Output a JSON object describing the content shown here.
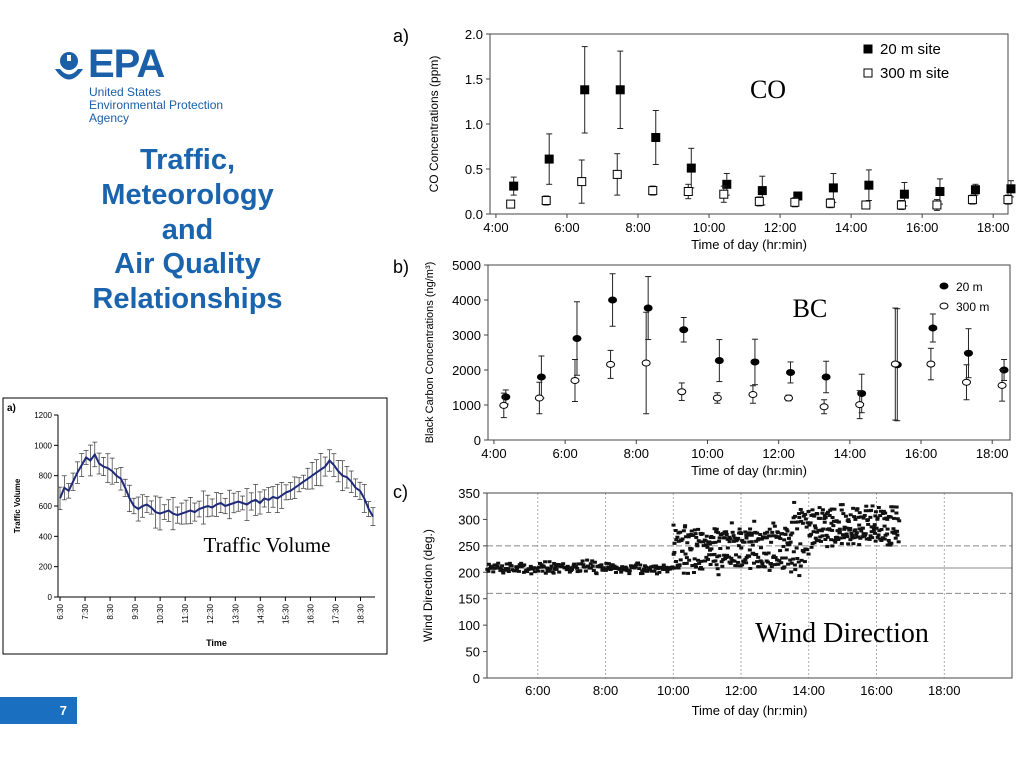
{
  "branding": {
    "logo_text": "EPA",
    "org_line1": "United States",
    "org_line2": "Environmental Protection",
    "org_line3": "Agency",
    "brand_color": "#1a5fa8"
  },
  "slide": {
    "title_lines": [
      "Traffic,",
      "Meteorology",
      "and",
      "Air Quality",
      "Relationships"
    ],
    "page_number": "7",
    "title_color": "#1a64ae",
    "badge_color": "#1a6fc0"
  },
  "chart_data": [
    {
      "id": "traffic",
      "type": "line",
      "panel_label": "a)",
      "annotation": "Traffic Volume",
      "xlabel": "Time",
      "ylabel": "Traffic Volume",
      "ylim": [
        0,
        1200
      ],
      "yticks": [
        "0",
        "200",
        "400",
        "600",
        "800",
        "1000",
        "1200"
      ],
      "xticks": [
        "6:30",
        "7:30",
        "8:30",
        "9:30",
        "10:30",
        "11:30",
        "12:30",
        "13:30",
        "14:30",
        "15:30",
        "16:30",
        "17:30",
        "18:30"
      ],
      "series": [
        {
          "values": [
            650,
            720,
            700,
            760,
            820,
            870,
            920,
            900,
            940,
            880,
            860,
            850,
            830,
            800,
            780,
            720,
            650,
            600,
            580,
            600,
            610,
            590,
            560,
            550,
            560,
            570,
            550,
            540,
            550,
            560,
            570,
            560,
            580,
            590,
            600,
            590,
            610,
            620,
            600,
            610,
            620,
            630,
            620,
            610,
            630,
            640,
            620,
            650,
            640,
            660,
            650,
            670,
            690,
            700,
            720,
            740,
            760,
            780,
            800,
            820,
            840,
            860,
            900,
            870,
            830,
            800,
            790,
            760,
            720,
            700,
            650,
            580,
            530
          ]
        }
      ]
    },
    {
      "id": "co",
      "type": "scatter",
      "panel_label": "a)",
      "annotation": "CO",
      "xlabel": "Time of day (hr:min)",
      "ylabel": "CO Concentrations (ppm)",
      "ylim": [
        0,
        2
      ],
      "yticks": [
        "0.0",
        "0.5",
        "1.0",
        "1.5",
        "2.0"
      ],
      "xticks": [
        "4:00",
        "6:00",
        "8:00",
        "10:00",
        "12:00",
        "14:00",
        "16:00",
        "18:00"
      ],
      "x": [
        "4:30",
        "5:30",
        "6:30",
        "7:30",
        "8:30",
        "9:30",
        "10:30",
        "11:30",
        "12:30",
        "13:30",
        "14:30",
        "15:30",
        "16:30",
        "17:30",
        "18:30"
      ],
      "series": [
        {
          "name": "20 m site",
          "values": [
            0.31,
            0.61,
            1.38,
            1.38,
            0.85,
            0.51,
            0.33,
            0.26,
            0.2,
            0.29,
            0.32,
            0.22,
            0.25,
            0.27,
            0.28
          ],
          "err": [
            0.1,
            0.28,
            0.48,
            0.43,
            0.3,
            0.22,
            0.12,
            0.16,
            0.04,
            0.16,
            0.17,
            0.13,
            0.14,
            0.06,
            0.09
          ]
        },
        {
          "name": "300 m site",
          "values": [
            0.11,
            0.15,
            0.36,
            0.44,
            0.26,
            0.25,
            0.22,
            0.14,
            0.13,
            0.12,
            0.1,
            0.1,
            0.1,
            0.16,
            0.16
          ],
          "err": [
            0.04,
            0.05,
            0.24,
            0.23,
            0.05,
            0.08,
            0.09,
            0.05,
            0.05,
            0.05,
            0.04,
            0.05,
            0.06,
            0.05,
            0.05
          ]
        }
      ]
    },
    {
      "id": "bc",
      "type": "scatter",
      "panel_label": "b)",
      "annotation": "BC",
      "xlabel": "Time of day (hr:min)",
      "ylabel": "Black Carbon Concentrations (ng/m³)",
      "ylim": [
        0,
        5000
      ],
      "yticks": [
        "0",
        "1000",
        "2000",
        "3000",
        "4000",
        "5000"
      ],
      "xticks": [
        "4:00",
        "6:00",
        "8:00",
        "10:00",
        "12:00",
        "14:00",
        "16:00",
        "18:00"
      ],
      "x": [
        "4:20",
        "5:20",
        "6:20",
        "7:20",
        "8:20",
        "9:20",
        "10:20",
        "11:20",
        "12:20",
        "13:20",
        "14:20",
        "15:20",
        "16:20",
        "17:20",
        "18:20"
      ],
      "series": [
        {
          "name": "20 m",
          "values": [
            1230,
            1800,
            2900,
            4000,
            3770,
            3150,
            2270,
            2230,
            1930,
            1800,
            1330,
            2150,
            3200,
            2480,
            2000
          ],
          "err": [
            200,
            600,
            1050,
            750,
            900,
            350,
            600,
            650,
            300,
            450,
            550,
            1600,
            400,
            700,
            300
          ]
        },
        {
          "name": "300 m",
          "values": [
            990,
            1200,
            1700,
            2160,
            2200,
            1380,
            1200,
            1300,
            1200,
            950,
            1010,
            2170,
            2170,
            1650,
            1560
          ],
          "err": [
            350,
            450,
            600,
            400,
            1450,
            250,
            150,
            250,
            80,
            200,
            400,
            1600,
            450,
            500,
            450
          ]
        }
      ]
    },
    {
      "id": "wind",
      "type": "scatter",
      "panel_label": "c)",
      "annotation": "Wind Direction",
      "xlabel": "Time of day (hr:min)",
      "ylabel": "Wind Direction (deg.)",
      "ylim": [
        0,
        350
      ],
      "yticks": [
        "0",
        "50",
        "100",
        "150",
        "200",
        "250",
        "300",
        "350"
      ],
      "xticks": [
        "6:00",
        "8:00",
        "10:00",
        "12:00",
        "14:00",
        "16:00",
        "18:00"
      ],
      "xlim": [
        "4:30",
        "20:00"
      ],
      "reference_lines": [
        160,
        208,
        250
      ],
      "point_bands": [
        {
          "from": "4:30",
          "to": "10:00",
          "center": 208,
          "spread": 14
        },
        {
          "from": "10:00",
          "to": "14:00",
          "center": 225,
          "spread": 35
        },
        {
          "from": "10:00",
          "to": "13:30",
          "center": 268,
          "spread": 25
        },
        {
          "from": "13:30",
          "to": "16:40",
          "center": 305,
          "spread": 35
        },
        {
          "from": "14:00",
          "to": "16:40",
          "center": 270,
          "spread": 25
        }
      ]
    }
  ]
}
